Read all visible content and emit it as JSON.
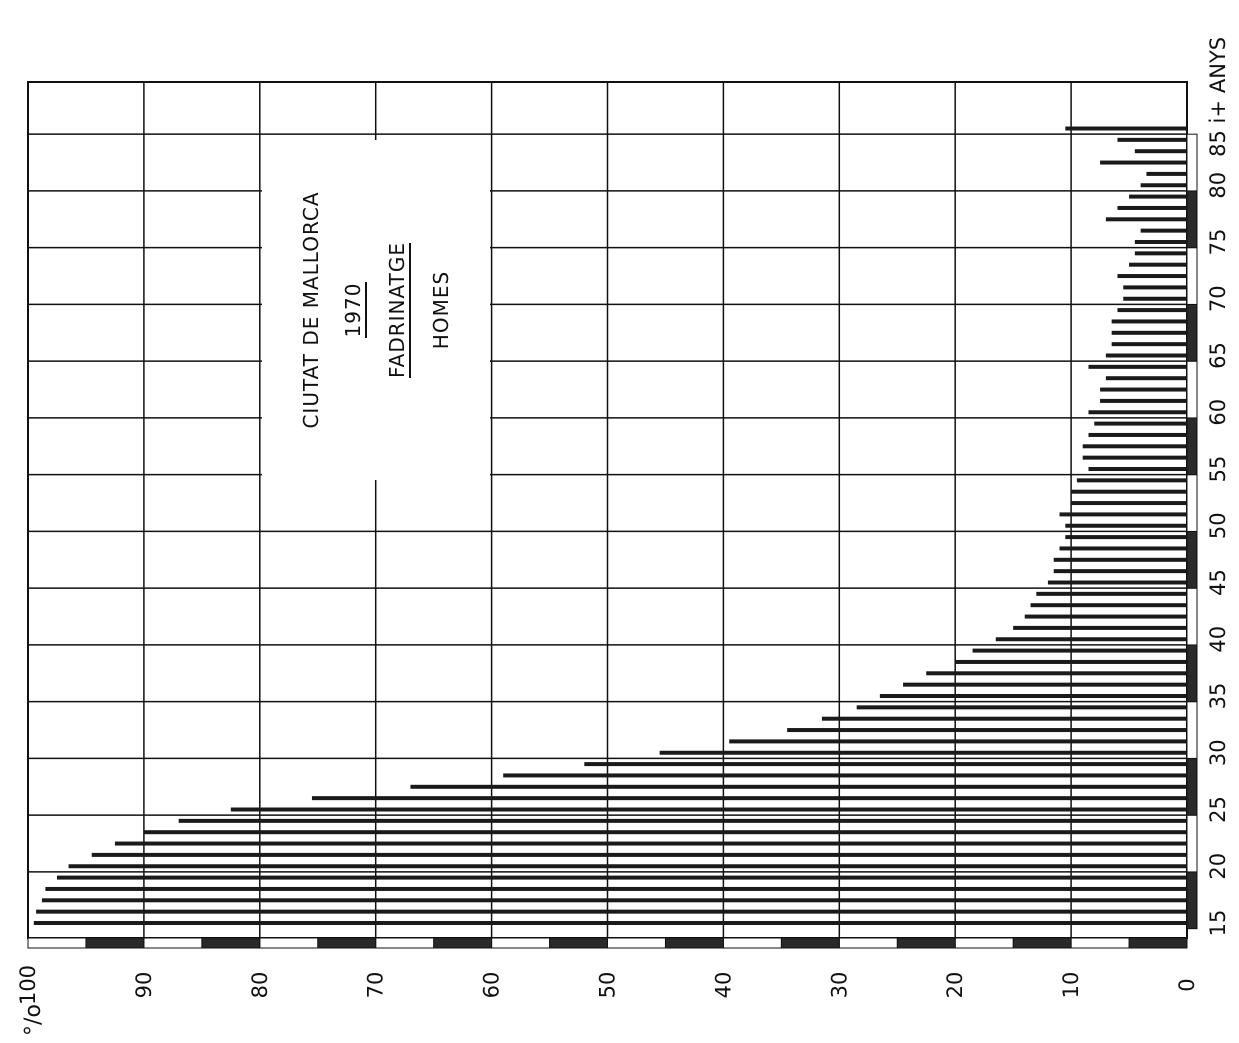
{
  "chart_data": {
    "type": "bar",
    "orientation": "horizontal",
    "title_lines": [
      "CIUTAT DE MALLORCA",
      "1970",
      "FADRINATGE",
      "HOMES"
    ],
    "age_axis_title": "ANYS",
    "value_axis_title": "°/o",
    "age_tick_labels": [
      "15",
      "20",
      "25",
      "30",
      "35",
      "40",
      "45",
      "50",
      "55",
      "60",
      "65",
      "70",
      "75",
      "80",
      "85 i+"
    ],
    "value_tick_labels": [
      "0",
      "10",
      "20",
      "30",
      "40",
      "50",
      "60",
      "70",
      "80",
      "90",
      "100"
    ],
    "xlim": [
      0,
      100
    ],
    "ages": [
      15,
      16,
      17,
      18,
      19,
      20,
      21,
      22,
      23,
      24,
      25,
      26,
      27,
      28,
      29,
      30,
      31,
      32,
      33,
      34,
      35,
      36,
      37,
      38,
      39,
      40,
      41,
      42,
      43,
      44,
      45,
      46,
      47,
      48,
      49,
      50,
      51,
      52,
      53,
      54,
      55,
      56,
      57,
      58,
      59,
      60,
      61,
      62,
      63,
      64,
      65,
      66,
      67,
      68,
      69,
      70,
      71,
      72,
      73,
      74,
      75,
      76,
      77,
      78,
      79,
      80,
      81,
      82,
      83,
      84,
      85
    ],
    "values": [
      99.5,
      99.3,
      98.8,
      98.5,
      97.5,
      96.5,
      94.5,
      92.5,
      90.0,
      87.0,
      82.5,
      75.5,
      67.0,
      59.0,
      52.0,
      45.5,
      39.5,
      34.5,
      31.5,
      28.5,
      26.5,
      24.5,
      22.5,
      20.0,
      18.5,
      16.5,
      15.0,
      14.0,
      13.5,
      13.0,
      12.0,
      11.5,
      11.5,
      11.0,
      10.5,
      10.5,
      11.0,
      10.0,
      10.0,
      9.5,
      8.5,
      9.0,
      9.0,
      8.5,
      8.0,
      8.5,
      7.5,
      7.5,
      7.0,
      8.5,
      7.0,
      6.5,
      6.5,
      6.5,
      6.0,
      5.5,
      5.5,
      6.0,
      5.0,
      4.5,
      4.5,
      4.0,
      7.0,
      6.0,
      5.0,
      4.0,
      3.5,
      7.5,
      4.5,
      6.0,
      10.5
    ],
    "grid": true
  }
}
